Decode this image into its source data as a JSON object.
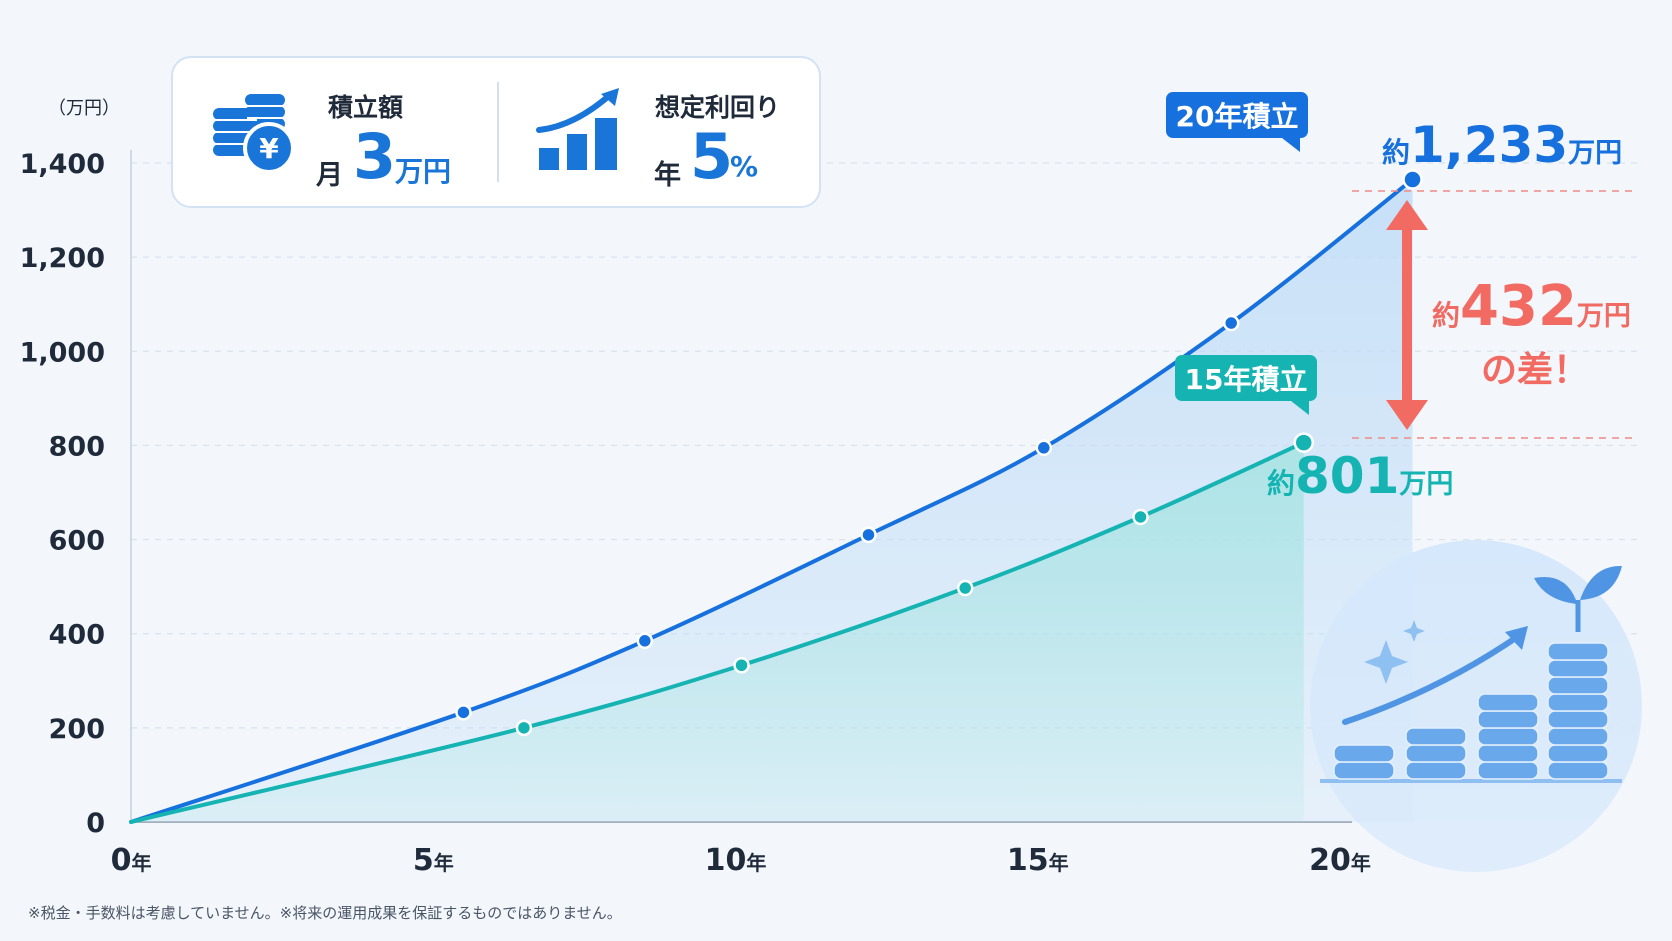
{
  "info": {
    "monthly": {
      "label": "積立額",
      "prefix": "月",
      "value": "3",
      "unit": "万円"
    },
    "rate": {
      "label": "想定利回り",
      "prefix": "年",
      "value": "5",
      "unit": "%"
    },
    "icons": [
      "coins-yen-icon",
      "bar-chart-up-icon"
    ]
  },
  "chart_data": {
    "type": "line",
    "ylabel": "（万円）",
    "ylim": [
      0,
      1400
    ],
    "yticks": [
      "0",
      "200",
      "400",
      "600",
      "800",
      "1,000",
      "1,200",
      "1,400"
    ],
    "xlim": [
      0,
      20
    ],
    "xticks": [
      {
        "num": "0",
        "unit": "年"
      },
      {
        "num": "5",
        "unit": "年"
      },
      {
        "num": "10",
        "unit": "年"
      },
      {
        "num": "15",
        "unit": "年"
      },
      {
        "num": "20",
        "unit": "年"
      }
    ],
    "grid": true,
    "series": [
      {
        "name": "20年積立",
        "color": "#1670dd",
        "fill": "#dbeafb",
        "x": [
          0,
          5.5,
          8.5,
          12.2,
          15.1,
          18.2,
          21.2
        ],
        "values": [
          0,
          233,
          385,
          610,
          795,
          1060,
          1365
        ]
      },
      {
        "name": "15年積立",
        "color": "#16b3b3",
        "fill": "#cbeff0",
        "x": [
          0,
          6.5,
          10.1,
          13.8,
          16.7,
          19.4
        ],
        "values": [
          0,
          200,
          333,
          497,
          648,
          806
        ]
      }
    ],
    "annotations": {
      "total20": {
        "prefix": "約",
        "value": "1,233",
        "unit": "万円"
      },
      "total15": {
        "prefix": "約",
        "value": "801",
        "unit": "万円"
      },
      "diff": {
        "prefix": "約",
        "value": "432",
        "unit": "万円",
        "line2": "の差！"
      }
    }
  },
  "colors": {
    "blue": "#1670dd",
    "teal": "#16b3b3",
    "coral": "#f26b63",
    "grid": "#d9e2ec"
  },
  "footnote": "※税金・手数料は考慮していません。※将来の運用成果を保証するものではありません。"
}
